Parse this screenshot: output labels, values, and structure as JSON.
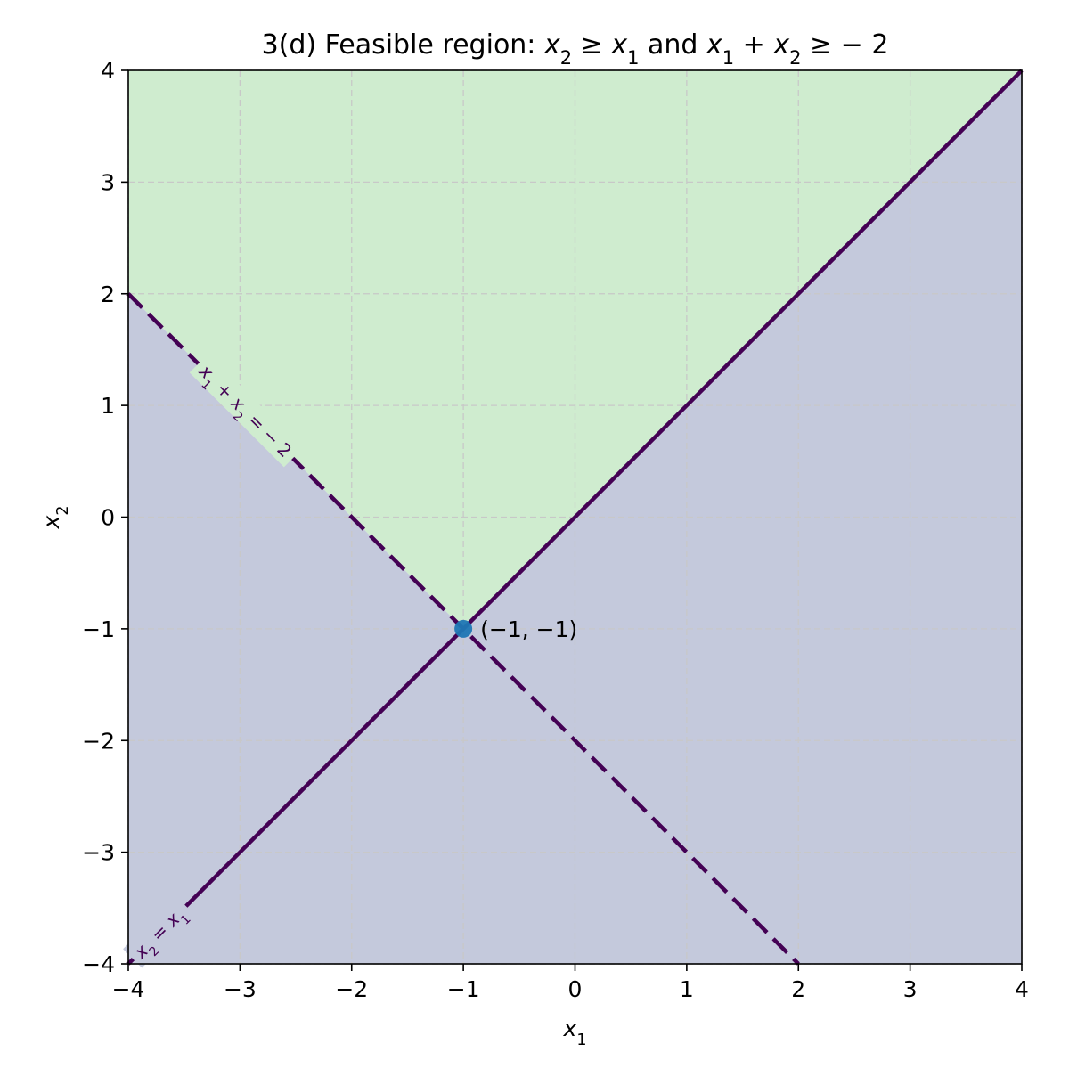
{
  "chart_data": {
    "type": "line",
    "title": {
      "prefix": "3(d) Feasible region: ",
      "expr1": {
        "var": "x",
        "sub": "2",
        "rel": " ≥ ",
        "var2": "x",
        "sub2": "1"
      },
      "joiner": " and ",
      "expr2": {
        "var": "x",
        "sub": "1",
        "plus": " + ",
        "var2": "x",
        "sub2": "2",
        "rel": " ≥ − 2"
      }
    },
    "xlabel": {
      "var": "x",
      "sub": "1"
    },
    "ylabel": {
      "var": "x",
      "sub": "2"
    },
    "xlim": [
      -4,
      4
    ],
    "ylim": [
      -4,
      4
    ],
    "xticks": [
      -4,
      -3,
      -2,
      -1,
      0,
      1,
      2,
      3,
      4
    ],
    "yticks": [
      -4,
      -3,
      -2,
      -1,
      0,
      1,
      2,
      3,
      4
    ],
    "tick_labels": {
      "x": [
        "−4",
        "−3",
        "−2",
        "−1",
        "0",
        "1",
        "2",
        "3",
        "4"
      ],
      "y": [
        "−4",
        "−3",
        "−2",
        "−1",
        "0",
        "1",
        "2",
        "3",
        "4"
      ]
    },
    "grid": true,
    "colors": {
      "feasible_fill": "#cfeccf",
      "infeasible_fill": "#c4c9dc",
      "line": "#440154",
      "point": "#1f77b4",
      "grid": "#c8c8c8"
    },
    "series": [
      {
        "label": "x₂ = x₁",
        "style": "solid",
        "x": [
          -4,
          4
        ],
        "y": [
          -4,
          4
        ]
      },
      {
        "label": "x₁ + x₂ = − 2",
        "style": "dashed",
        "x": [
          -4,
          2
        ],
        "y": [
          2,
          -4
        ]
      }
    ],
    "regions": [
      {
        "type": "feasible",
        "polygon": [
          [
            -4,
            2
          ],
          [
            -4,
            4
          ],
          [
            4,
            4
          ],
          [
            -1,
            -1
          ]
        ]
      },
      {
        "type": "infeasible",
        "polygon": [
          [
            -4,
            -4
          ],
          [
            4,
            -4
          ],
          [
            4,
            4
          ],
          [
            -1,
            -1
          ],
          [
            -4,
            2
          ]
        ]
      }
    ],
    "points": [
      {
        "x": -1,
        "y": -1,
        "label": "(−1, −1)"
      }
    ]
  }
}
